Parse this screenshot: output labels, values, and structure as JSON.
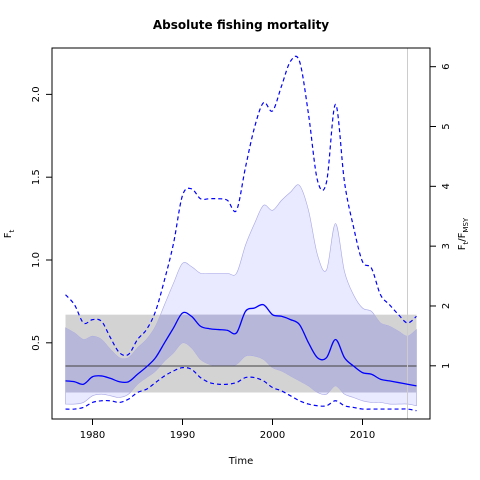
{
  "chart_data": {
    "type": "line",
    "title": "Absolute fishing mortality",
    "xlabel": "Time",
    "ylabel_left": "F",
    "ylabel_left_sub": "t",
    "ylabel_right_main": "F",
    "ylabel_right_sub1": "t",
    "ylabel_right_mid": "/F",
    "ylabel_right_sub2": "MSY",
    "xlim": [
      1975.5,
      2017.5
    ],
    "ylim": [
      0.04,
      2.28
    ],
    "right_scale_factor": 0.3612,
    "x_ticks": [
      1980,
      1990,
      2000,
      2010
    ],
    "y_ticks": [
      0.5,
      1.0,
      1.5,
      2.0
    ],
    "y_tick_labels": [
      "0.5",
      "1.0",
      "1.5",
      "2.0"
    ],
    "y2_ticks": [
      1,
      2,
      3,
      4,
      5,
      6
    ],
    "fmsy": {
      "value": 0.36,
      "lower": 0.2,
      "upper": 0.67
    },
    "vertical_line_x": 2015,
    "grid": false,
    "colors": {
      "median_line": "#0000ff",
      "ci_dashed": "#0000ff",
      "ci95_band": "#e0e0ff",
      "ci95_band_edge": "#a6a6e6",
      "ci50_band": "#b7b7d9",
      "fmsy_band": "#d3d3d3",
      "fmsy_line": "#404040",
      "vline": "#cccccc"
    },
    "series": [
      {
        "role": "median",
        "x": [
          1977,
          1978,
          1979,
          1980,
          1981,
          1982,
          1983,
          1984,
          1985,
          1986,
          1987,
          1988,
          1989,
          1990,
          1991,
          1992,
          1993,
          1994,
          1995,
          1996,
          1997,
          1998,
          1999,
          2000,
          2001,
          2002,
          2003,
          2004,
          2005,
          2006,
          2007,
          2008,
          2009,
          2010,
          2011,
          2012,
          2013,
          2014,
          2015,
          2016
        ],
        "y": [
          0.27,
          0.265,
          0.25,
          0.295,
          0.3,
          0.285,
          0.265,
          0.265,
          0.31,
          0.355,
          0.41,
          0.5,
          0.59,
          0.68,
          0.66,
          0.6,
          0.585,
          0.58,
          0.575,
          0.56,
          0.69,
          0.71,
          0.73,
          0.67,
          0.66,
          0.64,
          0.61,
          0.5,
          0.41,
          0.41,
          0.52,
          0.41,
          0.36,
          0.32,
          0.31,
          0.28,
          0.27,
          0.26,
          0.25,
          0.24
        ]
      },
      {
        "role": "ci_upper_95",
        "x": [
          1977,
          1978,
          1979,
          1980,
          1981,
          1982,
          1983,
          1984,
          1985,
          1986,
          1987,
          1988,
          1989,
          1990,
          1991,
          1992,
          1993,
          1994,
          1995,
          1996,
          1997,
          1998,
          1999,
          2000,
          2001,
          2002,
          2003,
          2004,
          2005,
          2006,
          2007,
          2008,
          2009,
          2010,
          2011,
          2012,
          2013,
          2014,
          2015,
          2016
        ],
        "y": [
          0.79,
          0.73,
          0.62,
          0.64,
          0.63,
          0.53,
          0.44,
          0.43,
          0.52,
          0.58,
          0.69,
          0.88,
          1.1,
          1.39,
          1.43,
          1.37,
          1.37,
          1.37,
          1.36,
          1.3,
          1.56,
          1.8,
          1.95,
          1.9,
          2.05,
          2.2,
          2.2,
          1.88,
          1.48,
          1.47,
          1.94,
          1.47,
          1.2,
          0.99,
          0.95,
          0.79,
          0.73,
          0.67,
          0.62,
          0.66
        ]
      },
      {
        "role": "ci_lower_95",
        "x": [
          1977,
          1978,
          1979,
          1980,
          1981,
          1982,
          1983,
          1984,
          1985,
          1986,
          1987,
          1988,
          1989,
          1990,
          1991,
          1992,
          1993,
          1994,
          1995,
          1996,
          1997,
          1998,
          1999,
          2000,
          2001,
          2002,
          2003,
          2004,
          2005,
          2006,
          2007,
          2008,
          2009,
          2010,
          2011,
          2012,
          2013,
          2014,
          2015,
          2016
        ],
        "y": [
          0.1,
          0.1,
          0.11,
          0.14,
          0.15,
          0.15,
          0.14,
          0.16,
          0.2,
          0.22,
          0.26,
          0.3,
          0.33,
          0.35,
          0.34,
          0.29,
          0.26,
          0.25,
          0.25,
          0.26,
          0.29,
          0.29,
          0.27,
          0.23,
          0.21,
          0.18,
          0.15,
          0.13,
          0.12,
          0.12,
          0.15,
          0.12,
          0.11,
          0.1,
          0.1,
          0.1,
          0.1,
          0.1,
          0.1,
          0.09
        ]
      },
      {
        "role": "ci_upper_shade",
        "x": [
          1977,
          1978,
          1979,
          1980,
          1981,
          1982,
          1983,
          1984,
          1985,
          1986,
          1987,
          1988,
          1989,
          1990,
          1991,
          1992,
          1993,
          1994,
          1995,
          1996,
          1997,
          1998,
          1999,
          2000,
          2001,
          2002,
          2003,
          2004,
          2005,
          2006,
          2007,
          2008,
          2009,
          2010,
          2011,
          2012,
          2013,
          2014,
          2015,
          2016
        ],
        "y": [
          0.59,
          0.56,
          0.52,
          0.54,
          0.52,
          0.46,
          0.41,
          0.41,
          0.47,
          0.52,
          0.6,
          0.73,
          0.86,
          0.98,
          0.96,
          0.92,
          0.92,
          0.92,
          0.92,
          0.92,
          1.09,
          1.22,
          1.33,
          1.3,
          1.36,
          1.41,
          1.45,
          1.3,
          1.03,
          0.94,
          1.22,
          0.93,
          0.79,
          0.71,
          0.69,
          0.62,
          0.6,
          0.57,
          0.54,
          0.58
        ]
      },
      {
        "role": "ci_lower_shade",
        "x": [
          1977,
          1978,
          1979,
          1980,
          1981,
          1982,
          1983,
          1984,
          1985,
          1986,
          1987,
          1988,
          1989,
          1990,
          1991,
          1992,
          1993,
          1994,
          1995,
          1996,
          1997,
          1998,
          1999,
          2000,
          2001,
          2002,
          2003,
          2004,
          2005,
          2006,
          2007,
          2008,
          2009,
          2010,
          2011,
          2012,
          2013,
          2014,
          2015,
          2016
        ],
        "y": [
          0.13,
          0.13,
          0.14,
          0.18,
          0.19,
          0.18,
          0.17,
          0.19,
          0.25,
          0.29,
          0.33,
          0.39,
          0.44,
          0.5,
          0.47,
          0.4,
          0.37,
          0.36,
          0.36,
          0.37,
          0.42,
          0.42,
          0.4,
          0.35,
          0.33,
          0.3,
          0.27,
          0.24,
          0.2,
          0.19,
          0.24,
          0.19,
          0.17,
          0.15,
          0.14,
          0.14,
          0.13,
          0.13,
          0.13,
          0.12
        ]
      }
    ]
  }
}
